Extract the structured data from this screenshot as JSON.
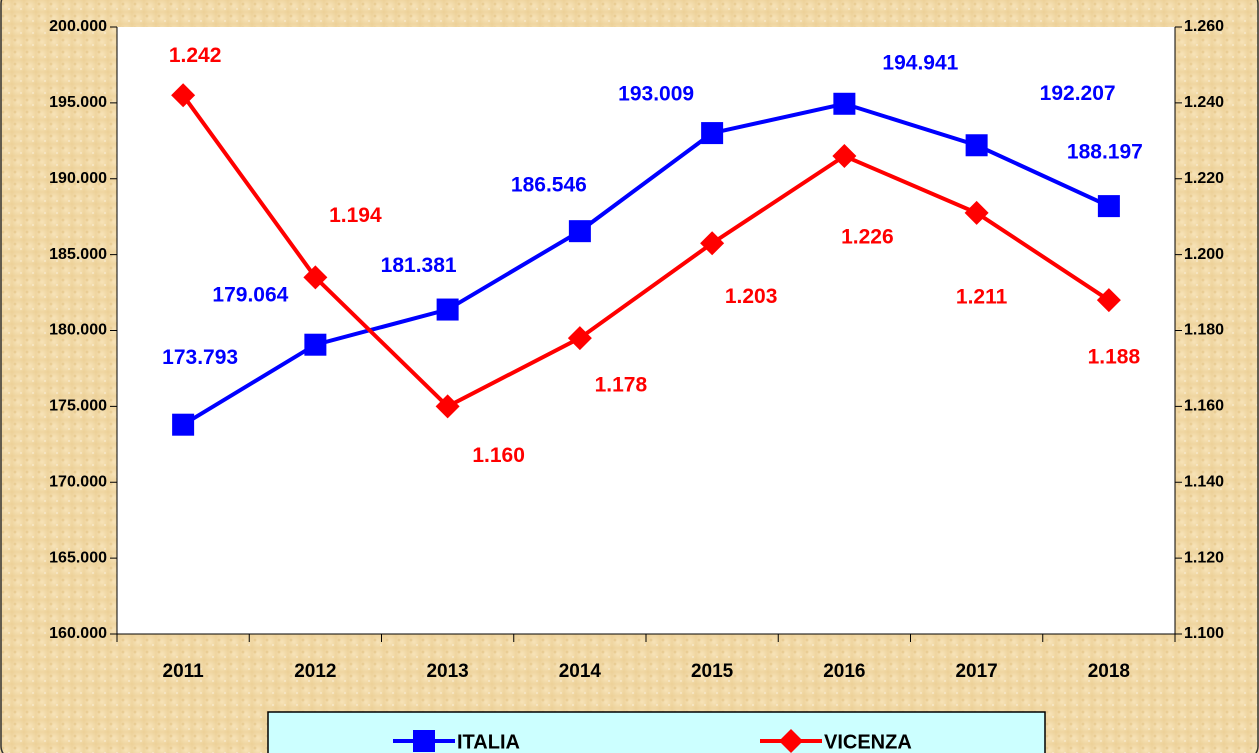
{
  "chart_data": {
    "type": "line",
    "categories": [
      "2011",
      "2012",
      "2013",
      "2014",
      "2015",
      "2016",
      "2017",
      "2018"
    ],
    "series": [
      {
        "name": "ITALIA",
        "color": "#0000ff",
        "axis": "y",
        "values": [
          173793,
          179064,
          181381,
          186546,
          193009,
          194941,
          192207,
          188197
        ],
        "value_labels": [
          "173.793",
          "179.064",
          "181.381",
          "186.546",
          "193.009",
          "194.941",
          "192.207",
          "188.197"
        ]
      },
      {
        "name": "VICENZA",
        "color": "#ff0000",
        "axis": "y2",
        "values": [
          1242,
          1194,
          1160,
          1178,
          1203,
          1226,
          1211,
          1188
        ],
        "value_labels": [
          "1.242",
          "1.194",
          "1.160",
          "1.178",
          "1.203",
          "1.226",
          "1.211",
          "1.188"
        ]
      }
    ],
    "ylim": [
      160000,
      200000
    ],
    "yticks": [
      {
        "value": 160000,
        "label": "160.000"
      },
      {
        "value": 165000,
        "label": "165.000"
      },
      {
        "value": 170000,
        "label": "170.000"
      },
      {
        "value": 175000,
        "label": "175.000"
      },
      {
        "value": 180000,
        "label": "180.000"
      },
      {
        "value": 185000,
        "label": "185.000"
      },
      {
        "value": 190000,
        "label": "190.000"
      },
      {
        "value": 195000,
        "label": "195.000"
      },
      {
        "value": 200000,
        "label": "200.000"
      }
    ],
    "y2lim": [
      1100,
      1260
    ],
    "y2ticks": [
      {
        "value": 1100,
        "label": "1.100"
      },
      {
        "value": 1120,
        "label": "1.120"
      },
      {
        "value": 1140,
        "label": "1.140"
      },
      {
        "value": 1160,
        "label": "1.160"
      },
      {
        "value": 1180,
        "label": "1.180"
      },
      {
        "value": 1200,
        "label": "1.200"
      },
      {
        "value": 1220,
        "label": "1.220"
      },
      {
        "value": 1240,
        "label": "1.240"
      },
      {
        "value": 1260,
        "label": "1.260"
      }
    ],
    "legend": "bottom"
  }
}
